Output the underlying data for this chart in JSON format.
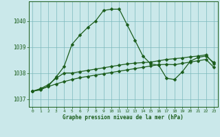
{
  "title": "Graphe pression niveau de la mer (hPa)",
  "background_color": "#cae8ea",
  "grid_color": "#7ab8bb",
  "line_color": "#1a5c1a",
  "x_labels": [
    "0",
    "1",
    "2",
    "3",
    "4",
    "5",
    "6",
    "7",
    "8",
    "9",
    "10",
    "11",
    "12",
    "13",
    "14",
    "15",
    "16",
    "17",
    "18",
    "19",
    "20",
    "21",
    "22",
    "23"
  ],
  "ylim": [
    1036.7,
    1040.75
  ],
  "yticks": [
    1037,
    1038,
    1039,
    1040
  ],
  "series1": [
    1037.3,
    1037.35,
    1037.5,
    1037.85,
    1038.25,
    1039.1,
    1039.45,
    1039.75,
    1040.0,
    1040.4,
    1040.45,
    1040.45,
    1039.85,
    1039.25,
    1038.65,
    1038.35,
    1038.3,
    1037.8,
    1037.75,
    1038.05,
    1038.45,
    1038.6,
    1038.65,
    1038.4
  ],
  "series2": [
    1037.3,
    1037.4,
    1037.55,
    1037.8,
    1038.0,
    1038.0,
    1038.05,
    1038.1,
    1038.15,
    1038.2,
    1038.25,
    1038.3,
    1038.35,
    1038.38,
    1038.4,
    1038.42,
    1038.47,
    1038.52,
    1038.55,
    1038.58,
    1038.62,
    1038.65,
    1038.7,
    1038.35
  ],
  "series3": [
    1037.3,
    1037.38,
    1037.48,
    1037.58,
    1037.67,
    1037.75,
    1037.82,
    1037.87,
    1037.92,
    1037.97,
    1038.02,
    1038.07,
    1038.12,
    1038.17,
    1038.22,
    1038.27,
    1038.32,
    1038.33,
    1038.32,
    1038.37,
    1038.42,
    1038.47,
    1038.52,
    1038.22
  ]
}
